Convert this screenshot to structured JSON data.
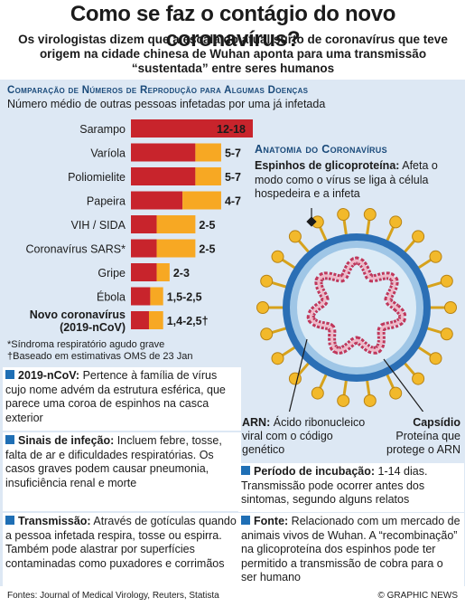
{
  "title": "Como se faz o contágio do novo coronavírus?",
  "subtitle": "Os virologistas dizem que a escala do atual surto de coronavírus que teve origem na cidade chinesa de Wuhan aponta para uma transmissão “sustentada” entre seres humanos",
  "section_title": "Comparação de Números de Reprodução para Algumas Doenças",
  "section_subtitle": "Número médio de outras pessoas infetadas por uma já infetada",
  "colors": {
    "low": "#c8242c",
    "high": "#f7a823",
    "accent": "#1f6fb5"
  },
  "chart_data": {
    "type": "bar",
    "orientation": "horizontal",
    "categories": [
      "Sarampo",
      "Varíola",
      "Poliomielite",
      "Papeira",
      "VIH / SIDA",
      "Coronavírus SARS*",
      "Gripe",
      "Ébola",
      "Novo coronavírus (2019-nCoV)"
    ],
    "series": [
      {
        "values": [
          12,
          5,
          5,
          4,
          2,
          2,
          2,
          1.5,
          1.4
        ]
      },
      {
        "values": [
          18,
          7,
          7,
          7,
          5,
          5,
          3,
          2.5,
          2.5
        ]
      }
    ],
    "value_labels": [
      "12-18",
      "5-7",
      "5-7",
      "4-7",
      "2-5",
      "2-5",
      "2-3",
      "1,5-2,5",
      "1,4-2,5†"
    ],
    "xlim": [
      0,
      18
    ]
  },
  "footnotes": [
    "*Síndroma respiratório agudo grave",
    "†Baseado em estimativas OMS de 23 Jan"
  ],
  "anatomy": {
    "title": "Anatomia do Coronavírus",
    "spike_label": "Espinhos de glicoproteína:",
    "spike_text": "Afeta o modo como o vírus se liga à célula hospedeira e a infeta",
    "arn_label": "ARN:",
    "arn_text": "Ácido ribonucleico viral com o código genético",
    "capsid_label": "Capsídio",
    "capsid_text": "Proteína que protege o ARN"
  },
  "boxes": {
    "ncov_label": "2019-nCoV:",
    "ncov_text": "Pertence à família de vírus cujo nome advém da estrutura esférica, que parece uma coroa de espinhos na casca exterior",
    "symptoms_label": "Sinais de infeção:",
    "symptoms_text": "Incluem febre, tosse, falta de ar e dificuldades respiratórias. Os casos graves podem causar pneumonia, insuficiência renal e morte",
    "transmission_label": "Transmissão:",
    "transmission_text": "Através de gotículas quando a pessoa infetada respira, tosse ou espirra. Também pode alastrar por superfícies contaminadas como puxadores e corrimãos",
    "incubation_label": "Período de incubação:",
    "incubation_text": "1-14 dias. Transmissão pode ocorrer antes dos sintomas, segundo alguns relatos",
    "source_label": "Fonte:",
    "source_text": "Relacionado com um mercado de animais vivos de Wuhan. A “recombinação” na glicoproteína dos espinhos pode ter permitido a transmissão de cobra para o ser humano"
  },
  "sources": "Fontes: Journal of Medical Virology, Reuters, Statista",
  "credit": "© GRAPHIC NEWS"
}
